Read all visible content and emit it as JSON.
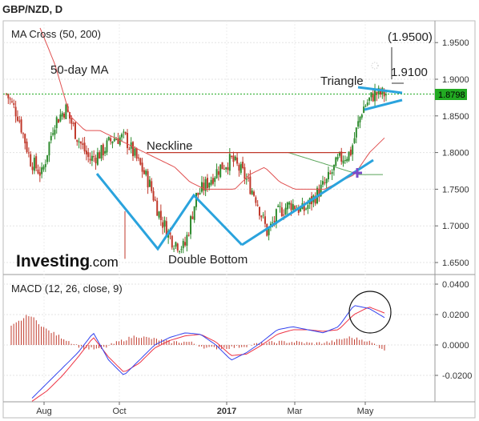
{
  "header": {
    "symbol_title": "GBP/NZD, D"
  },
  "main_panel": {
    "indicator_label": "MA Cross (50, 200)",
    "ma_label": "50-day MA",
    "neckline_label": "Neckline",
    "pattern_label": "Double Bottom",
    "triangle_label": "Triangle",
    "target_1": "(1.9500)",
    "target_2": "1.9100",
    "last_price": "1.8798",
    "logo_word": "Investing",
    "logo_suffix": ".com"
  },
  "macd_panel": {
    "indicator_label": "MACD (12, 26, close, 9)"
  },
  "colors": {
    "candle_up": "#2e8b2e",
    "candle_down": "#c0392b",
    "ma50": "#e05050",
    "ma200": "#5aa55a",
    "macd_line": "#3344ee",
    "signal_line": "#ee3344",
    "histogram": "#c0392b",
    "pattern_lines": "#2aa3dd",
    "neckline": "#c0392b",
    "price_tag": "#22aa22"
  },
  "chart_data": [
    {
      "type": "line",
      "title": "GBP/NZD, D",
      "subtitle": "MA Cross (50, 200)",
      "x_ticks": [
        "Aug",
        "Oct",
        "2017",
        "Mar",
        "May"
      ],
      "y_ticks": [
        1.65,
        1.7,
        1.75,
        1.8,
        1.85,
        1.9,
        1.95
      ],
      "y_tick_labels": [
        "1.6500",
        "1.7000",
        "1.7500",
        "1.8000",
        "1.8500",
        "1.9000",
        "1.9500"
      ],
      "ylim": [
        1.635,
        1.985
      ],
      "grid": true,
      "close_series_approx": [
        1.88,
        1.85,
        1.79,
        1.77,
        1.84,
        1.86,
        1.82,
        1.79,
        1.8,
        1.82,
        1.82,
        1.79,
        1.76,
        1.71,
        1.68,
        1.67,
        1.74,
        1.76,
        1.78,
        1.79,
        1.77,
        1.74,
        1.69,
        1.72,
        1.73,
        1.72,
        1.74,
        1.76,
        1.79,
        1.8,
        1.86,
        1.88,
        1.88
      ],
      "ma50_approx": [
        1.97,
        1.92,
        1.85,
        1.83,
        1.83,
        1.82,
        1.81,
        1.8,
        1.79,
        1.78,
        1.76,
        1.75,
        1.75,
        1.75,
        1.77,
        1.78,
        1.76,
        1.75,
        1.75,
        1.75,
        1.76,
        1.77,
        1.8,
        1.82
      ],
      "ma200_approx": [
        1.8,
        1.79,
        1.78,
        1.77,
        1.77
      ],
      "annotations": {
        "neckline": 1.8,
        "current_price": 1.8798,
        "targets": [
          "(1.9500)",
          "1.9100"
        ]
      }
    },
    {
      "type": "line",
      "title": "MACD (12, 26, close, 9)",
      "y_ticks": [
        0.04,
        0.02,
        0.0,
        -0.02
      ],
      "y_tick_labels": [
        "0.0400",
        "0.0200",
        "0.0000",
        "-0.0200"
      ],
      "ylim": [
        -0.037,
        0.043
      ],
      "series": [
        {
          "values": [
            -0.035,
            -0.025,
            -0.015,
            -0.005,
            0.008,
            -0.01,
            -0.02,
            -0.01,
            0.0,
            0.005,
            0.008,
            0.007,
            0.0,
            -0.01,
            -0.005,
            0.002,
            0.01,
            0.012,
            0.01,
            0.008,
            0.012,
            0.026,
            0.024,
            0.018
          ]
        },
        {
          "values": [
            -0.037,
            -0.03,
            -0.02,
            -0.008,
            0.005,
            -0.008,
            -0.018,
            -0.012,
            -0.002,
            0.003,
            0.006,
            0.007,
            0.002,
            -0.007,
            -0.006,
            0.0,
            0.007,
            0.01,
            0.01,
            0.009,
            0.01,
            0.02,
            0.025,
            0.021
          ]
        }
      ],
      "histogram_approx": [
        0.012,
        0.02,
        0.01,
        0.004,
        -0.002,
        -0.003,
        0.002,
        0.006,
        0.004,
        0.002,
        0.002,
        -0.002,
        -0.002,
        -0.001,
        0.001,
        0.002,
        0.002,
        0.001,
        0.002,
        0.005,
        0.003,
        -0.003
      ]
    }
  ]
}
